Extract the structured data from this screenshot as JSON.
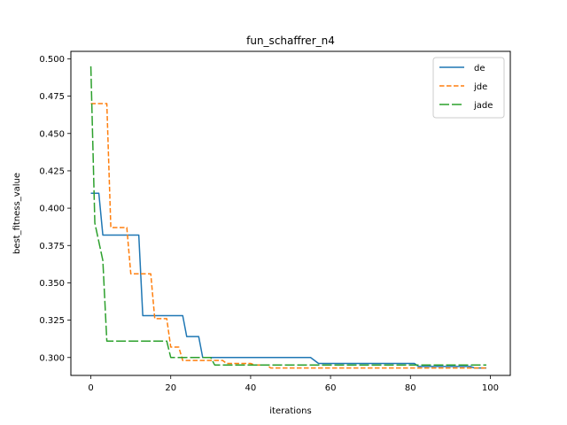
{
  "chart_data": {
    "type": "line",
    "title": "fun_schaffrer_n4",
    "xlabel": "iterations",
    "ylabel": "best_fitness_value",
    "xlim": [
      -5,
      105
    ],
    "ylim": [
      0.288,
      0.505
    ],
    "xticks": [
      0,
      20,
      40,
      60,
      80,
      100
    ],
    "yticks": [
      0.3,
      0.325,
      0.35,
      0.375,
      0.4,
      0.425,
      0.45,
      0.475,
      0.5
    ],
    "ytick_labels": [
      "0.300",
      "0.325",
      "0.350",
      "0.375",
      "0.400",
      "0.425",
      "0.450",
      "0.475",
      "0.500"
    ],
    "grid": false,
    "legend_position": "top-right",
    "series": [
      {
        "name": "de",
        "color": "#1f77b4",
        "style": "solid",
        "points": [
          [
            0,
            0.41
          ],
          [
            2,
            0.41
          ],
          [
            3,
            0.382
          ],
          [
            12,
            0.382
          ],
          [
            13,
            0.328
          ],
          [
            23,
            0.328
          ],
          [
            24,
            0.314
          ],
          [
            27,
            0.314
          ],
          [
            28,
            0.3
          ],
          [
            55,
            0.3
          ],
          [
            57,
            0.296
          ],
          [
            81,
            0.296
          ],
          [
            82,
            0.294
          ],
          [
            95,
            0.294
          ],
          [
            96,
            0.293
          ],
          [
            99,
            0.293
          ]
        ]
      },
      {
        "name": "jde",
        "color": "#ff7f0e",
        "style": "dashed",
        "points": [
          [
            0,
            0.47
          ],
          [
            4,
            0.47
          ],
          [
            5,
            0.387
          ],
          [
            9,
            0.387
          ],
          [
            10,
            0.356
          ],
          [
            15,
            0.356
          ],
          [
            16,
            0.326
          ],
          [
            19,
            0.326
          ],
          [
            20,
            0.307
          ],
          [
            22,
            0.307
          ],
          [
            23,
            0.298
          ],
          [
            33,
            0.298
          ],
          [
            34,
            0.296
          ],
          [
            40,
            0.296
          ],
          [
            41,
            0.295
          ],
          [
            44,
            0.295
          ],
          [
            45,
            0.293
          ],
          [
            99,
            0.293
          ]
        ]
      },
      {
        "name": "jade",
        "color": "#2ca02c",
        "style": "long-dashed",
        "points": [
          [
            0,
            0.495
          ],
          [
            1,
            0.39
          ],
          [
            3,
            0.365
          ],
          [
            4,
            0.311
          ],
          [
            19,
            0.311
          ],
          [
            20,
            0.3
          ],
          [
            30,
            0.3
          ],
          [
            31,
            0.295
          ],
          [
            99,
            0.295
          ]
        ]
      }
    ]
  }
}
